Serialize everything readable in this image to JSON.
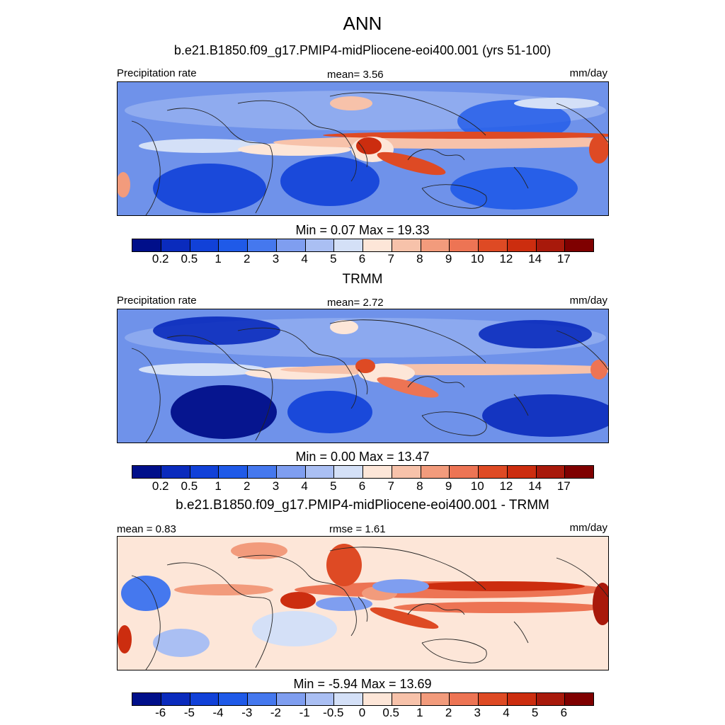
{
  "figure": {
    "season": "ANN",
    "case_title": "b.e21.B1850.f09_g17.PMIP4-midPliocene-eoi400.001 (yrs 51-100)"
  },
  "panels": [
    {
      "id": "model",
      "left_label": "Precipitation rate",
      "center_label": "mean=   3.56",
      "units": "mm/day",
      "stats": "Min =   0.07 Max =  19.33",
      "levels": [
        "0.2",
        "0.5",
        "1",
        "2",
        "3",
        "4",
        "5",
        "6",
        "7",
        "8",
        "9",
        "10",
        "12",
        "14",
        "17"
      ]
    },
    {
      "id": "obs",
      "title": "TRMM",
      "left_label": "Precipitation rate",
      "center_label": "mean=   2.72",
      "units": "mm/day",
      "stats": "Min =   0.00 Max =  13.47",
      "levels": [
        "0.2",
        "0.5",
        "1",
        "2",
        "3",
        "4",
        "5",
        "6",
        "7",
        "8",
        "9",
        "10",
        "12",
        "14",
        "17"
      ]
    },
    {
      "id": "diff",
      "title": "b.e21.B1850.f09_g17.PMIP4-midPliocene-eoi400.001 - TRMM",
      "left_label": "mean =   0.83",
      "center_label": "rmse =   1.61",
      "units": "mm/day",
      "stats": "Min =   -5.94 Max =  13.69",
      "levels": [
        "-6",
        "-5",
        "-4",
        "-3",
        "-2",
        "-1",
        "-0.5",
        "0",
        "0.5",
        "1",
        "2",
        "3",
        "4",
        "5",
        "6"
      ]
    }
  ],
  "chart_data": [
    {
      "type": "heatmap",
      "title": "ANN",
      "subtitle": "b.e21.B1850.f09_g17.PMIP4-midPliocene-eoi400.001 (yrs 51-100)",
      "variable": "Precipitation rate",
      "units": "mm/day",
      "mean": 3.56,
      "min": 0.07,
      "max": 19.33,
      "contour_levels": [
        0.2,
        0.5,
        1,
        2,
        3,
        4,
        5,
        6,
        7,
        8,
        9,
        10,
        12,
        14,
        17
      ]
    },
    {
      "type": "heatmap",
      "title": "TRMM",
      "variable": "Precipitation rate",
      "units": "mm/day",
      "mean": 2.72,
      "min": 0.0,
      "max": 13.47,
      "contour_levels": [
        0.2,
        0.5,
        1,
        2,
        3,
        4,
        5,
        6,
        7,
        8,
        9,
        10,
        12,
        14,
        17
      ]
    },
    {
      "type": "heatmap",
      "title": "b.e21.B1850.f09_g17.PMIP4-midPliocene-eoi400.001 - TRMM",
      "units": "mm/day",
      "mean": 0.83,
      "rmse": 1.61,
      "min": -5.94,
      "max": 13.69,
      "contour_levels": [
        -6,
        -5,
        -4,
        -3,
        -2,
        -1,
        -0.5,
        0,
        0.5,
        1,
        2,
        3,
        4,
        5,
        6
      ]
    }
  ],
  "colors": {
    "palette": [
      "#000f8a",
      "#0a2bbd",
      "#1141d8",
      "#1f5ae8",
      "#4578ee",
      "#7f9ef0",
      "#aabff3",
      "#d4e0f7",
      "#fde6d8",
      "#f7c2aa",
      "#f29b7c",
      "#ed7454",
      "#de4a24",
      "#cc2d0f",
      "#a8190b",
      "#7f0000"
    ],
    "map_background": "#6f92ea",
    "coastline": "#222222"
  }
}
